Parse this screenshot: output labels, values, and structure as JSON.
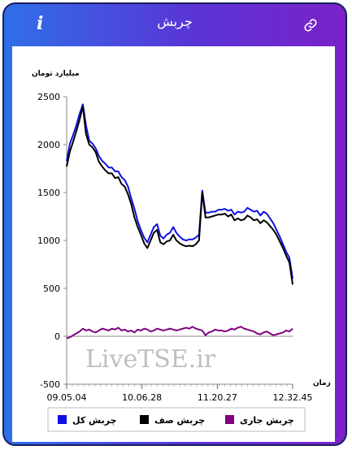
{
  "header": {
    "title": "چربش",
    "info_icon": "info-icon",
    "link_icon": "link-icon"
  },
  "watermark": "LiveTSE.ir",
  "chart_data": {
    "type": "line",
    "title": "",
    "ylabel": "میلیارد تومان",
    "xlabel": "زمان",
    "ylim": [
      -500,
      2500
    ],
    "yticks": [
      -500,
      0,
      500,
      1000,
      1500,
      2000,
      2500
    ],
    "xtick_labels": [
      "09.05.04",
      "10.06.28",
      "11.20.27",
      "12.32.45"
    ],
    "grid": false,
    "legend_position": "bottom",
    "series": [
      {
        "name": "چربش کل",
        "color": "#1010e0",
        "values": [
          1830,
          2010,
          2100,
          2200,
          2320,
          2420,
          2200,
          2040,
          2010,
          1960,
          1880,
          1830,
          1800,
          1760,
          1760,
          1720,
          1720,
          1660,
          1630,
          1560,
          1440,
          1330,
          1200,
          1110,
          1030,
          980,
          1060,
          1140,
          1170,
          1050,
          1020,
          1060,
          1080,
          1140,
          1080,
          1040,
          1010,
          1000,
          1010,
          1010,
          1030,
          1060,
          1520,
          1290,
          1290,
          1300,
          1300,
          1320,
          1320,
          1330,
          1310,
          1320,
          1270,
          1300,
          1290,
          1300,
          1340,
          1320,
          1300,
          1310,
          1260,
          1300,
          1280,
          1230,
          1180,
          1110,
          1040,
          960,
          880,
          820,
          600
        ]
      },
      {
        "name": "چربش صف",
        "color": "#000000",
        "values": [
          1770,
          1930,
          2030,
          2140,
          2260,
          2400,
          2110,
          2000,
          1970,
          1920,
          1820,
          1770,
          1730,
          1700,
          1700,
          1650,
          1660,
          1590,
          1560,
          1480,
          1380,
          1240,
          1140,
          1060,
          970,
          920,
          1000,
          1080,
          1110,
          980,
          960,
          990,
          1000,
          1060,
          1000,
          970,
          950,
          940,
          945,
          940,
          960,
          1000,
          1500,
          1240,
          1240,
          1250,
          1260,
          1270,
          1270,
          1280,
          1250,
          1270,
          1210,
          1230,
          1210,
          1220,
          1260,
          1240,
          1210,
          1220,
          1180,
          1210,
          1190,
          1150,
          1110,
          1060,
          990,
          920,
          840,
          770,
          540
        ]
      },
      {
        "name": "چربش جاری",
        "color": "#800080",
        "values": [
          -20,
          -10,
          10,
          30,
          50,
          80,
          60,
          70,
          50,
          40,
          60,
          80,
          70,
          60,
          80,
          70,
          90,
          60,
          70,
          50,
          60,
          40,
          70,
          60,
          80,
          70,
          50,
          60,
          80,
          70,
          60,
          70,
          80,
          70,
          60,
          70,
          80,
          90,
          80,
          100,
          80,
          70,
          60,
          10,
          40,
          50,
          70,
          60,
          60,
          50,
          60,
          80,
          70,
          90,
          100,
          80,
          70,
          60,
          50,
          30,
          20,
          40,
          50,
          30,
          10,
          20,
          30,
          40,
          60,
          50,
          80
        ]
      }
    ]
  }
}
